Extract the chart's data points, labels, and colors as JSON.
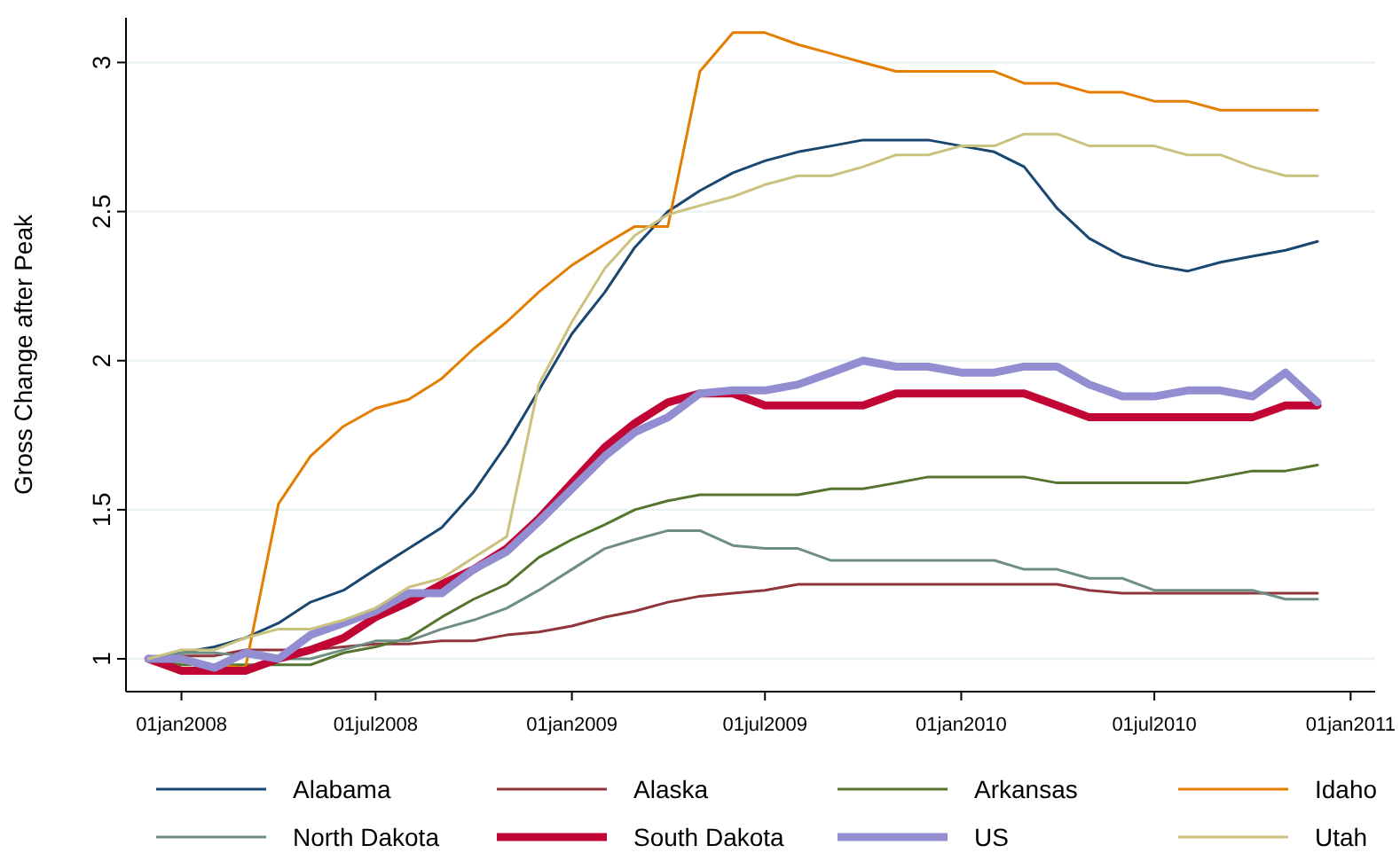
{
  "chart_data": {
    "type": "line",
    "ylabel": "Gross Change after Peak",
    "x": [
      "2007-12-01",
      "2008-01-01",
      "2008-02-01",
      "2008-03-01",
      "2008-04-01",
      "2008-05-01",
      "2008-06-01",
      "2008-07-01",
      "2008-08-01",
      "2008-09-01",
      "2008-10-01",
      "2008-11-01",
      "2008-12-01",
      "2009-01-01",
      "2009-02-01",
      "2009-03-01",
      "2009-04-01",
      "2009-05-01",
      "2009-06-01",
      "2009-07-01",
      "2009-08-01",
      "2009-09-01",
      "2009-10-01",
      "2009-11-01",
      "2009-12-01",
      "2010-01-01",
      "2010-02-01",
      "2010-03-01",
      "2010-04-01",
      "2010-05-01",
      "2010-06-01",
      "2010-07-01",
      "2010-08-01",
      "2010-09-01",
      "2010-10-01",
      "2010-11-01",
      "2010-12-01"
    ],
    "series": [
      {
        "name": "Alabama",
        "color": "#1a476f",
        "values": [
          1.0,
          1.02,
          1.04,
          1.07,
          1.12,
          1.19,
          1.23,
          1.3,
          1.37,
          1.44,
          1.56,
          1.72,
          1.9,
          2.09,
          2.23,
          2.38,
          2.5,
          2.57,
          2.63,
          2.67,
          2.7,
          2.72,
          2.74,
          2.74,
          2.74,
          2.72,
          2.7,
          2.65,
          2.51,
          2.41,
          2.35,
          2.32,
          2.3,
          2.33,
          2.35,
          2.37,
          2.4
        ]
      },
      {
        "name": "Alaska",
        "color": "#90353b",
        "values": [
          1.0,
          1.01,
          1.01,
          1.03,
          1.03,
          1.03,
          1.04,
          1.05,
          1.05,
          1.06,
          1.06,
          1.08,
          1.09,
          1.11,
          1.14,
          1.16,
          1.19,
          1.21,
          1.22,
          1.23,
          1.25,
          1.25,
          1.25,
          1.25,
          1.25,
          1.25,
          1.25,
          1.25,
          1.25,
          1.23,
          1.22,
          1.22,
          1.22,
          1.22,
          1.22,
          1.22,
          1.22
        ]
      },
      {
        "name": "Arkansas",
        "color": "#55752f",
        "values": [
          1.0,
          0.98,
          0.98,
          0.98,
          0.98,
          0.98,
          1.02,
          1.04,
          1.07,
          1.14,
          1.2,
          1.25,
          1.34,
          1.4,
          1.45,
          1.5,
          1.53,
          1.55,
          1.55,
          1.55,
          1.55,
          1.57,
          1.57,
          1.59,
          1.61,
          1.61,
          1.61,
          1.61,
          1.59,
          1.59,
          1.59,
          1.59,
          1.59,
          1.61,
          1.63,
          1.63,
          1.65
        ]
      },
      {
        "name": "Idaho",
        "color": "#e37e00",
        "values": [
          1.0,
          0.99,
          0.98,
          0.97,
          1.52,
          1.68,
          1.78,
          1.84,
          1.87,
          1.94,
          2.04,
          2.13,
          2.23,
          2.32,
          2.39,
          2.45,
          2.45,
          2.97,
          3.1,
          3.1,
          3.06,
          3.03,
          3.0,
          2.97,
          2.97,
          2.97,
          2.97,
          2.93,
          2.93,
          2.9,
          2.9,
          2.87,
          2.87,
          2.84,
          2.84,
          2.84,
          2.84
        ]
      },
      {
        "name": "North Dakota",
        "color": "#6e8e84",
        "values": [
          1.0,
          1.02,
          1.02,
          1.01,
          1.0,
          1.0,
          1.03,
          1.06,
          1.06,
          1.1,
          1.13,
          1.17,
          1.23,
          1.3,
          1.37,
          1.4,
          1.43,
          1.43,
          1.38,
          1.37,
          1.37,
          1.33,
          1.33,
          1.33,
          1.33,
          1.33,
          1.33,
          1.3,
          1.3,
          1.27,
          1.27,
          1.23,
          1.23,
          1.23,
          1.23,
          1.2,
          1.2
        ]
      },
      {
        "name": "South Dakota",
        "color": "#c10534",
        "values": [
          1.0,
          0.96,
          0.96,
          0.96,
          1.0,
          1.03,
          1.07,
          1.14,
          1.19,
          1.25,
          1.3,
          1.37,
          1.47,
          1.59,
          1.71,
          1.79,
          1.86,
          1.89,
          1.89,
          1.85,
          1.85,
          1.85,
          1.85,
          1.89,
          1.89,
          1.89,
          1.89,
          1.89,
          1.85,
          1.81,
          1.81,
          1.81,
          1.81,
          1.81,
          1.81,
          1.85,
          1.85
        ]
      },
      {
        "name": "US",
        "color": "#938dd2",
        "values": [
          1.0,
          1.0,
          0.97,
          1.02,
          1.0,
          1.08,
          1.12,
          1.16,
          1.22,
          1.22,
          1.3,
          1.36,
          1.46,
          1.57,
          1.68,
          1.76,
          1.81,
          1.89,
          1.9,
          1.9,
          1.92,
          1.96,
          2.0,
          1.98,
          1.98,
          1.96,
          1.96,
          1.98,
          1.98,
          1.92,
          1.88,
          1.88,
          1.9,
          1.9,
          1.88,
          1.96,
          1.86
        ]
      },
      {
        "name": "Utah",
        "color": "#cac27e",
        "values": [
          1.0,
          1.03,
          1.03,
          1.07,
          1.1,
          1.1,
          1.13,
          1.17,
          1.24,
          1.27,
          1.34,
          1.41,
          1.92,
          2.13,
          2.31,
          2.42,
          2.49,
          2.52,
          2.55,
          2.59,
          2.62,
          2.62,
          2.65,
          2.69,
          2.69,
          2.72,
          2.72,
          2.76,
          2.76,
          2.72,
          2.72,
          2.72,
          2.69,
          2.69,
          2.65,
          2.62,
          2.62
        ]
      }
    ],
    "xlim": [
      "2007-11-10",
      "2011-01-24"
    ],
    "xticks": [
      {
        "value": "2008-01-01",
        "label": "01jan2008"
      },
      {
        "value": "2008-07-01",
        "label": "01jul2008"
      },
      {
        "value": "2009-01-01",
        "label": "01jan2009"
      },
      {
        "value": "2009-07-01",
        "label": "01jul2009"
      },
      {
        "value": "2010-01-01",
        "label": "01jan2010"
      },
      {
        "value": "2010-07-01",
        "label": "01jul2010"
      },
      {
        "value": "2011-01-01",
        "label": "01jan2011"
      }
    ],
    "ylim": [
      0.89,
      3.15
    ],
    "yticks": [
      1,
      1.5,
      2,
      2.5,
      3
    ],
    "grid": "y",
    "legend": "bottom",
    "marker": "none",
    "line_style": "solid"
  }
}
